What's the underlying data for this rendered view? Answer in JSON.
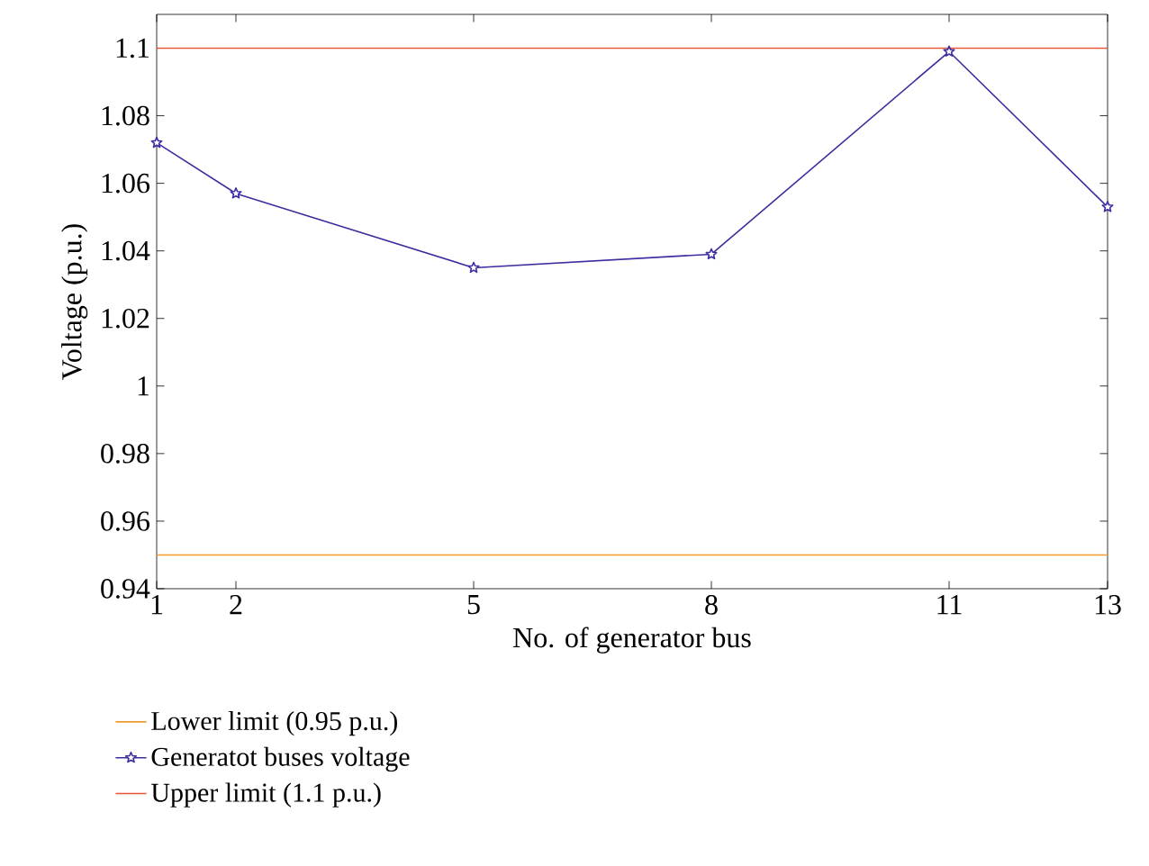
{
  "chart_data": {
    "type": "line",
    "xlabel": "No. of generator bus",
    "ylabel": "Voltage (p.u.)",
    "xlim": [
      1,
      13
    ],
    "xticks": [
      1,
      2,
      5,
      8,
      11,
      13
    ],
    "ylim": [
      0.94,
      1.11
    ],
    "yticks": [
      0.94,
      0.96,
      0.98,
      1,
      1.02,
      1.04,
      1.06,
      1.08,
      1.1
    ],
    "grid": false,
    "legend": "bottom",
    "series": [
      {
        "name": "Lower limit (0.95 p.u.)",
        "color": "#f39a2b",
        "x": [
          1,
          13
        ],
        "values": [
          0.95,
          0.95
        ],
        "marker": "none"
      },
      {
        "name": "Generatot buses voltage",
        "color": "#3b2ea0",
        "x": [
          1,
          2,
          5,
          8,
          11,
          13
        ],
        "values": [
          1.072,
          1.057,
          1.035,
          1.039,
          1.099,
          1.053
        ],
        "marker": "star"
      },
      {
        "name": "Upper limit (1.1 p.u.)",
        "color": "#e8533a",
        "x": [
          1,
          13
        ],
        "values": [
          1.1,
          1.1
        ],
        "marker": "none"
      }
    ]
  }
}
